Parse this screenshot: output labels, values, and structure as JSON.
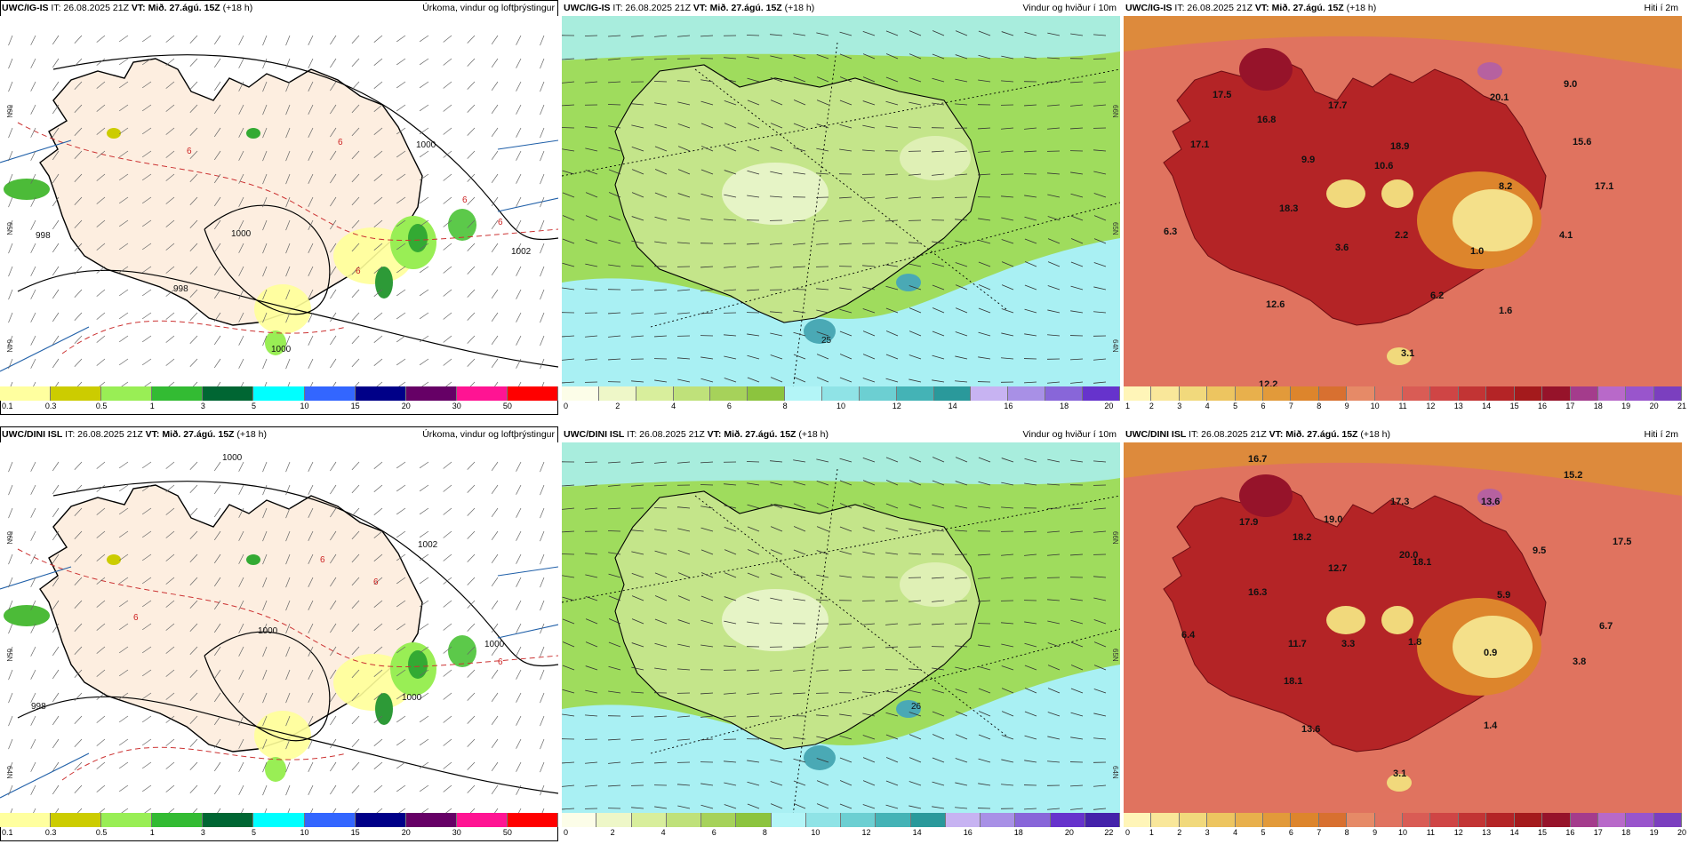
{
  "panels": [
    {
      "model": "UWC/IG-IS",
      "it": "IT: 26.08.2025 21Z",
      "vt_label": "VT:",
      "vt_value": "Mið. 27.ágú. 15Z",
      "offset": "(+18 h)",
      "title": "Úrkoma, vindur og loftþrýstingur",
      "type": "precip",
      "colorbar": {
        "colors": [
          "#ffff9f",
          "#cccc00",
          "#99ee55",
          "#33bb33",
          "#006633",
          "#00ffff",
          "#3366ff",
          "#000088",
          "#660066",
          "#ff1493",
          "#ff0000"
        ],
        "labels": [
          "0.1",
          "0.3",
          "0.5",
          "1",
          "3",
          "5",
          "10",
          "15",
          "20",
          "30",
          "50"
        ]
      },
      "map_labels": [
        "1000",
        "1000",
        "1002",
        "998",
        "1000",
        "998",
        "6",
        "6",
        "6",
        "6",
        "6"
      ]
    },
    {
      "model": "UWC/IG-IS",
      "it": "IT: 26.08.2025 21Z",
      "vt_label": "VT:",
      "vt_value": "Mið. 27.ágú. 15Z",
      "offset": "(+18 h)",
      "title": "Vindur og hviður í 10m",
      "type": "wind",
      "colorbar": {
        "colors": [
          "#fcfde8",
          "#eef7c8",
          "#d8ee9c",
          "#bfe17a",
          "#a6d25a",
          "#8cc43e",
          "#b3f5f7",
          "#8fe3e6",
          "#6ccfd2",
          "#44b3b6",
          "#2a999b",
          "#c7b3f2",
          "#a890e6",
          "#8866d9",
          "#6633cc"
        ],
        "labels": [
          "0",
          "2",
          "4",
          "6",
          "8",
          "10",
          "12",
          "14",
          "16",
          "18",
          "20"
        ]
      },
      "map_labels": [
        "25"
      ]
    },
    {
      "model": "UWC/IG-IS",
      "it": "IT: 26.08.2025 21Z",
      "vt_label": "VT:",
      "vt_value": "Mið. 27.ágú. 15Z",
      "offset": "(+18 h)",
      "title": "Hiti í 2m",
      "type": "temp",
      "colorbar": {
        "colors": [
          "#fff5b8",
          "#f9e79a",
          "#f1d97c",
          "#edc560",
          "#e8b04c",
          "#e29a3a",
          "#dd852c",
          "#d87030",
          "#e68a67",
          "#e07360",
          "#d95c55",
          "#cf4545",
          "#c23434",
          "#b42426",
          "#a41a1c",
          "#96132a",
          "#a43c8c",
          "#b869c9",
          "#9955cc",
          "#7b3fbf"
        ],
        "labels": [
          "1",
          "2",
          "3",
          "4",
          "5",
          "6",
          "7",
          "8",
          "9",
          "10",
          "11",
          "12",
          "13",
          "14",
          "15",
          "16",
          "17",
          "18",
          "19",
          "20",
          "21"
        ]
      },
      "map_labels": [
        "17.5",
        "16.8",
        "17.1",
        "9.9",
        "17.7",
        "18.9",
        "10.6",
        "20.1",
        "9.0",
        "15.6",
        "8.2",
        "17.1",
        "18.3",
        "6.3",
        "3.6",
        "2.2",
        "1.0",
        "4.1",
        "12.6",
        "6.2",
        "1.6",
        "3.1",
        "12.2"
      ]
    },
    {
      "model": "UWC/DINI ISL",
      "it": "IT: 26.08.2025 21Z",
      "vt_label": "VT:",
      "vt_value": "Mið. 27.ágú. 15Z",
      "offset": "(+18 h)",
      "title": "Úrkoma, vindur og loftþrýstingur",
      "type": "precip",
      "colorbar": {
        "colors": [
          "#ffff9f",
          "#cccc00",
          "#99ee55",
          "#33bb33",
          "#006633",
          "#00ffff",
          "#3366ff",
          "#000088",
          "#660066",
          "#ff1493",
          "#ff0000"
        ],
        "labels": [
          "0.1",
          "0.3",
          "0.5",
          "1",
          "3",
          "5",
          "10",
          "15",
          "20",
          "30",
          "50"
        ]
      },
      "map_labels": [
        "1000",
        "1002",
        "1000",
        "998",
        "1000",
        "1000",
        "6",
        "6",
        "6",
        "6"
      ]
    },
    {
      "model": "UWC/DINI ISL",
      "it": "IT: 26.08.2025 21Z",
      "vt_label": "VT:",
      "vt_value": "Mið. 27.ágú. 15Z",
      "offset": "(+18 h)",
      "title": "Vindur og hviður í 10m",
      "type": "wind",
      "colorbar": {
        "colors": [
          "#fcfde8",
          "#eef7c8",
          "#d8ee9c",
          "#bfe17a",
          "#a6d25a",
          "#8cc43e",
          "#b3f5f7",
          "#8fe3e6",
          "#6ccfd2",
          "#44b3b6",
          "#2a999b",
          "#c7b3f2",
          "#a890e6",
          "#8866d9",
          "#6633cc",
          "#4422aa"
        ],
        "labels": [
          "0",
          "2",
          "4",
          "6",
          "8",
          "10",
          "12",
          "14",
          "16",
          "18",
          "20",
          "22"
        ]
      },
      "map_labels": [
        "26"
      ]
    },
    {
      "model": "UWC/DINI ISL",
      "it": "IT: 26.08.2025 21Z",
      "vt_label": "VT:",
      "vt_value": "Mið. 27.ágú. 15Z",
      "offset": "(+18 h)",
      "title": "Hiti í 2m",
      "type": "temp",
      "colorbar": {
        "colors": [
          "#fff5b8",
          "#f9e79a",
          "#f1d97c",
          "#edc560",
          "#e8b04c",
          "#e29a3a",
          "#dd852c",
          "#d87030",
          "#e68a67",
          "#e07360",
          "#d95c55",
          "#cf4545",
          "#c23434",
          "#b42426",
          "#a41a1c",
          "#96132a",
          "#a43c8c",
          "#b869c9",
          "#9955cc",
          "#7b3fbf"
        ],
        "labels": [
          "0",
          "1",
          "2",
          "3",
          "4",
          "5",
          "6",
          "7",
          "8",
          "9",
          "10",
          "11",
          "12",
          "13",
          "14",
          "15",
          "16",
          "17",
          "18",
          "19",
          "20"
        ]
      },
      "map_labels": [
        "16.7",
        "17.9",
        "18.2",
        "19.0",
        "17.3",
        "13.6",
        "15.2",
        "20.0",
        "18.1",
        "17.5",
        "9.5",
        "12.7",
        "5.9",
        "16.3",
        "6.7",
        "6.4",
        "11.7",
        "3.3",
        "1.8",
        "0.9",
        "3.8",
        "18.1",
        "13.6",
        "1.4",
        "3.1"
      ]
    }
  ],
  "lat_labels": [
    "66N",
    "65N",
    "64N"
  ]
}
